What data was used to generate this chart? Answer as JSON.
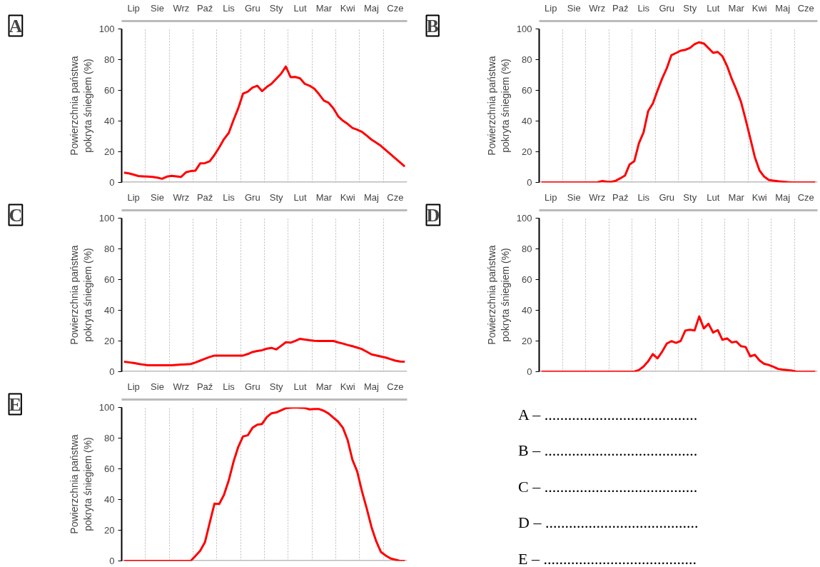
{
  "chart_data": [
    {
      "type": "line",
      "title": "A",
      "ylabel": "Powierzchnia państwa\npokryta śniegiem (%)",
      "ylim": [
        0,
        100
      ],
      "yticks": [
        0,
        20,
        40,
        60,
        80,
        100
      ],
      "grid": "x",
      "categories": [
        null,
        null,
        "Lip",
        null,
        null,
        null,
        null,
        "Sie",
        null,
        null,
        null,
        null,
        "Wrz",
        null,
        null,
        null,
        null,
        "Paź",
        null,
        null,
        null,
        null,
        "Lis",
        null,
        null,
        null,
        null,
        "Gru",
        null,
        null,
        null,
        null,
        "Sty",
        null,
        null,
        null,
        null,
        "Lut",
        null,
        null,
        null,
        null,
        "Mar",
        null,
        null,
        null,
        null,
        "Kwi",
        null,
        null,
        null,
        null,
        "Maj",
        null,
        null,
        null,
        null,
        "Cze",
        null,
        null
      ],
      "series": [
        {
          "color": "#ff0000",
          "values": [
            6.4,
            5.9,
            5.1,
            4.2,
            4.0,
            3.8,
            3.6,
            3.1,
            2.4,
            3.8,
            4.3,
            4.0,
            3.6,
            6.6,
            7.4,
            7.7,
            12.4,
            12.6,
            13.8,
            17.9,
            22.8,
            28.2,
            32.2,
            40.6,
            48.3,
            57.8,
            59.1,
            61.8,
            63.0,
            59.5,
            62.2,
            64.3,
            67.6,
            70.8,
            75.5,
            68.6,
            68.7,
            67.8,
            64.2,
            63.0,
            61.0,
            57.4,
            53.3,
            51.9,
            48.3,
            43.1,
            40.2,
            38.1,
            35.5,
            34.4,
            33.0,
            30.5,
            27.9,
            25.9,
            23.8,
            21.1,
            18.4,
            15.8,
            13.1,
            10.4
          ]
        }
      ]
    },
    {
      "type": "line",
      "title": "B",
      "ylabel": "Powierzchnia państwa\npokryta śniegiem (%)",
      "ylim": [
        0,
        100
      ],
      "yticks": [
        0,
        20,
        40,
        60,
        80,
        100
      ],
      "grid": "x",
      "categories": [
        null,
        null,
        "Lip",
        null,
        null,
        null,
        null,
        "Sie",
        null,
        null,
        null,
        null,
        "Wrz",
        null,
        null,
        null,
        null,
        "Paź",
        null,
        null,
        null,
        null,
        "Lis",
        null,
        null,
        null,
        null,
        "Gru",
        null,
        null,
        null,
        null,
        "Sty",
        null,
        null,
        null,
        null,
        "Lut",
        null,
        null,
        null,
        null,
        "Mar",
        null,
        null,
        null,
        null,
        "Kwi",
        null,
        null,
        null,
        null,
        "Maj",
        null,
        null,
        null,
        null,
        "Cze",
        null,
        null
      ],
      "series": [
        {
          "color": "#ff0000",
          "values": [
            0,
            0,
            0,
            0,
            0,
            0,
            0,
            0,
            0,
            0,
            0,
            0,
            0,
            0.9,
            0.6,
            0.4,
            1.1,
            2.7,
            4.5,
            11.8,
            13.8,
            25.5,
            32.6,
            46.5,
            51.4,
            59.8,
            67.6,
            74.3,
            82.9,
            84.3,
            85.8,
            86.4,
            87.6,
            90.1,
            91.3,
            90.5,
            87.5,
            84.4,
            85.0,
            82.2,
            75.9,
            67.6,
            60.5,
            52.6,
            41.1,
            28.9,
            16.4,
            7.8,
            3.8,
            1.6,
            1.2,
            0.8,
            0.5,
            0.2,
            0,
            0,
            0,
            0,
            0,
            0
          ]
        }
      ]
    },
    {
      "type": "line",
      "title": "C",
      "ylabel": "Powierzchnia państwa\npokryta śniegiem (%)",
      "ylim": [
        0,
        100
      ],
      "yticks": [
        0,
        20,
        40,
        60,
        80,
        100
      ],
      "grid": "x",
      "categories": [
        null,
        null,
        "Lip",
        null,
        null,
        null,
        null,
        "Sie",
        null,
        null,
        null,
        null,
        "Wrz",
        null,
        null,
        null,
        null,
        "Paź",
        null,
        null,
        null,
        null,
        "Lis",
        null,
        null,
        null,
        null,
        "Gru",
        null,
        null,
        null,
        null,
        "Sty",
        null,
        null,
        null,
        null,
        "Lut",
        null,
        null,
        null,
        null,
        "Mar",
        null,
        null,
        null,
        null,
        "Kwi",
        null,
        null,
        null,
        null,
        "Maj",
        null,
        null,
        null,
        null,
        "Cze",
        null,
        null
      ],
      "series": [
        {
          "color": "#ff0000",
          "values": [
            6.5,
            6.1,
            5.7,
            5.1,
            4.6,
            4.2,
            4.2,
            4.2,
            4.2,
            4.2,
            4.2,
            4.4,
            4.6,
            4.8,
            5.0,
            6.0,
            7.2,
            8.4,
            9.6,
            10.5,
            10.5,
            10.5,
            10.5,
            10.5,
            10.5,
            10.5,
            11.5,
            12.8,
            13.5,
            14.0,
            15.0,
            15.5,
            14.5,
            16.8,
            19.2,
            18.9,
            20.1,
            21.4,
            20.9,
            20.5,
            20.1,
            20,
            20,
            20,
            20,
            19.1,
            18.3,
            17.4,
            16.6,
            15.7,
            14.7,
            13.0,
            11.3,
            10.6,
            9.9,
            9.2,
            8.2,
            7.2,
            6.6,
            6.5
          ]
        }
      ]
    },
    {
      "type": "line",
      "title": "D",
      "ylabel": "Powierzchnia państwa\npokryta śniegiem (%)",
      "ylim": [
        0,
        100
      ],
      "yticks": [
        0,
        20,
        40,
        60,
        80,
        100
      ],
      "grid": "x",
      "categories": [
        null,
        null,
        "Lip",
        null,
        null,
        null,
        null,
        "Sie",
        null,
        null,
        null,
        null,
        "Wrz",
        null,
        null,
        null,
        null,
        "Paź",
        null,
        null,
        null,
        null,
        "Lis",
        null,
        null,
        null,
        null,
        "Gru",
        null,
        null,
        null,
        null,
        "Sty",
        null,
        null,
        null,
        null,
        "Lut",
        null,
        null,
        null,
        null,
        "Mar",
        null,
        null,
        null,
        null,
        "Kwi",
        null,
        null,
        null,
        null,
        "Maj",
        null,
        null,
        null,
        null,
        "Cze",
        null,
        null
      ],
      "series": [
        {
          "color": "#ff0000",
          "values": [
            0,
            0,
            0,
            0,
            0,
            0,
            0,
            0,
            0,
            0,
            0,
            0,
            0,
            0,
            0,
            0,
            0,
            0,
            0,
            0,
            0,
            1.1,
            3.4,
            6.8,
            11.5,
            8.7,
            13.0,
            18.3,
            19.9,
            18.8,
            20.0,
            26.8,
            27.3,
            26.9,
            36.0,
            28.2,
            31.2,
            25.5,
            27.1,
            20.8,
            21.7,
            19.1,
            19.6,
            16.6,
            16.1,
            10.0,
            11.0,
            7.3,
            5.1,
            4.4,
            3.2,
            1.8,
            1.4,
            1.1,
            0.7,
            0,
            0,
            0,
            0,
            0
          ]
        }
      ]
    },
    {
      "type": "line",
      "title": "E",
      "ylabel": "Powierzchnia państwa\npokryta śniegiem (%)",
      "ylim": [
        0,
        100
      ],
      "yticks": [
        0,
        20,
        40,
        60,
        80,
        100
      ],
      "grid": "x",
      "categories": [
        null,
        null,
        "Lip",
        null,
        null,
        null,
        null,
        "Sie",
        null,
        null,
        null,
        null,
        "Wrz",
        null,
        null,
        null,
        null,
        "Paź",
        null,
        null,
        null,
        null,
        "Lis",
        null,
        null,
        null,
        null,
        "Gru",
        null,
        null,
        null,
        null,
        "Sty",
        null,
        null,
        null,
        null,
        "Lut",
        null,
        null,
        null,
        null,
        "Mar",
        null,
        null,
        null,
        null,
        "Kwi",
        null,
        null,
        null,
        null,
        "Maj",
        null,
        null,
        null,
        null,
        "Cze",
        null,
        null
      ],
      "series": [
        {
          "color": "#ff0000",
          "values": [
            0,
            0,
            0,
            0,
            0,
            0,
            0,
            0,
            0,
            0,
            0,
            0,
            0,
            0,
            0,
            3.3,
            6.6,
            12.2,
            24.8,
            37.3,
            37.1,
            43.0,
            52.4,
            64.5,
            74.3,
            81.1,
            81.8,
            86.7,
            88.7,
            89.2,
            93.7,
            96.2,
            96.7,
            98.1,
            99.5,
            99.8,
            100,
            99.8,
            99.6,
            98.7,
            98.9,
            98.9,
            97.8,
            96.0,
            93.3,
            90.7,
            86.7,
            78.7,
            65.9,
            58.3,
            45.4,
            34.2,
            22.1,
            12.8,
            5.8,
            3.5,
            1.6,
            0.8,
            0,
            0
          ]
        }
      ]
    },
    {
      "type": "other",
      "annotations": [
        "A – .......................................",
        "B – .......................................",
        "C – .......................................",
        "D – .......................................",
        "E – ......................................."
      ]
    }
  ]
}
